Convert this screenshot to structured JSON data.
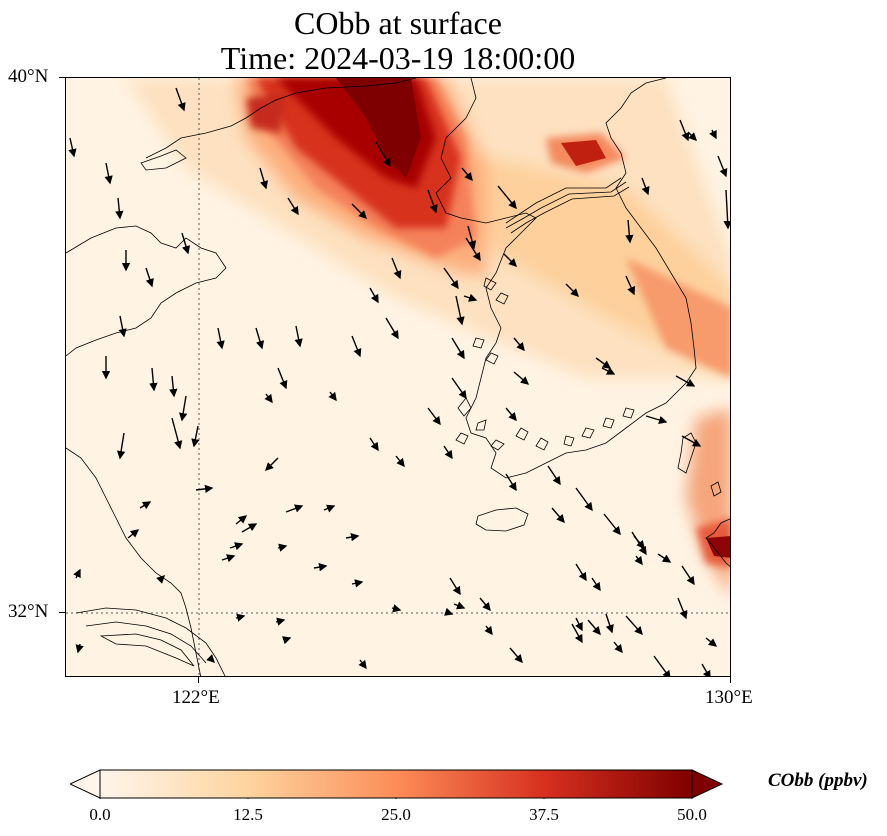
{
  "title": {
    "line1": "CObb at surface",
    "line2": "Time: 2024-03-19 18:00:00"
  },
  "axes": {
    "lat_labels": [
      "40°N",
      "32°N"
    ],
    "lon_labels": [
      "122°E",
      "130°E"
    ]
  },
  "colorbar": {
    "label": "CObb (ppbv)",
    "ticks": [
      "0.0",
      "12.5",
      "25.0",
      "37.5",
      "50.0"
    ],
    "colors": [
      "#fff5eb",
      "#fdd49e",
      "#fc8d59",
      "#d7301f",
      "#7f0000"
    ]
  },
  "chart_data": {
    "type": "heatmap",
    "variable": "CObb",
    "units": "ppbv",
    "vmin": 0.0,
    "vmax": 50.0,
    "lon_range": [
      120,
      130
    ],
    "lat_range": [
      31,
      40
    ],
    "plumes": [
      {
        "lon": [
          123.0,
          125.4
        ],
        "lat": [
          39.1,
          40.0
        ],
        "value": 50
      },
      {
        "lon": [
          124.9,
          126.0
        ],
        "lat": [
          37.2,
          38.7
        ],
        "value": 45
      },
      {
        "lon": [
          127.2,
          128.0
        ],
        "lat": [
          38.5,
          38.8
        ],
        "value": 42
      },
      {
        "lon": [
          129.0,
          130.0
        ],
        "lat": [
          33.9,
          35.0
        ],
        "value": 30
      },
      {
        "lon": [
          129.6,
          130.0
        ],
        "lat": [
          32.6,
          32.9
        ],
        "value": 48
      }
    ]
  }
}
